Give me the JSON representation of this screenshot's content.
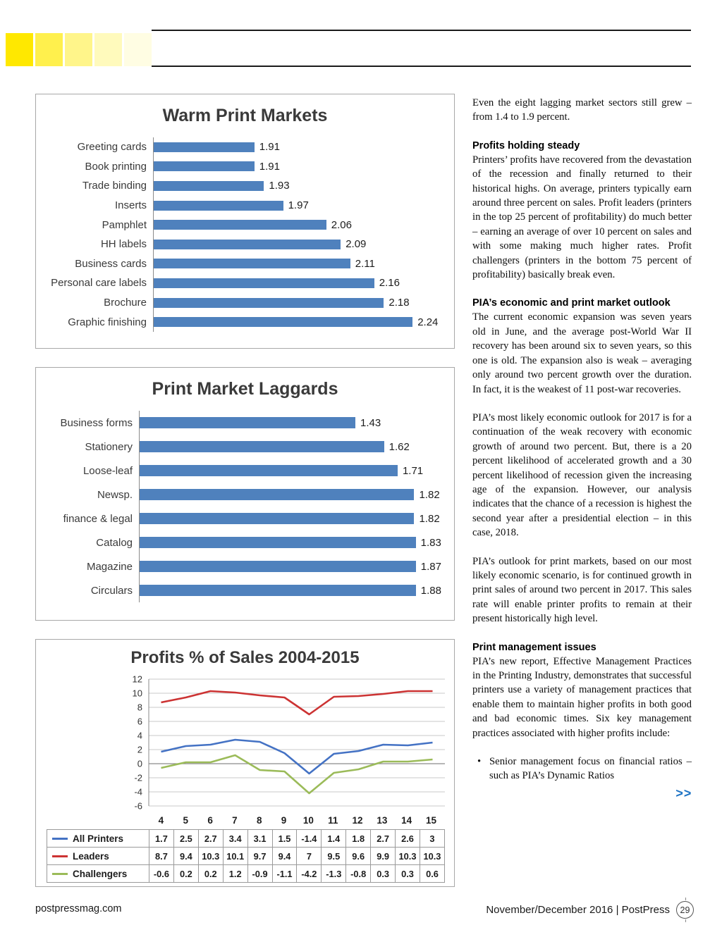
{
  "header": {
    "accent_blocks": [
      "#ffe800",
      "#fff04d",
      "#fff58a",
      "#fffabc",
      "#fffde3"
    ],
    "rule_color": "#1a1a1a"
  },
  "article": {
    "intro": "Even the eight lagging market sectors still grew – from 1.4 to 1.9 percent.",
    "bullet_marker": "•",
    "sections": [
      {
        "heading": "Profits holding steady",
        "paragraphs": [
          "Printers’ profits have recovered from the devastation of the recession and finally returned to their historical highs. On average, printers typically earn around three percent on sales. Profit leaders (printers in the top 25 percent of profitability) do much better – earning an average of over 10 percent on sales and with some making much higher rates. Profit challengers (printers in the bottom 75 percent of profitability) basically break even."
        ]
      },
      {
        "heading": "PIA’s economic and print market outlook",
        "paragraphs": [
          "The current economic expansion was seven years old in June, and the average post-World War II recovery has been around six to seven years, so this one is old. The expansion also is weak – averaging only around two percent growth over the duration. In fact, it is the weakest of 11 post-war recoveries.",
          "PIA’s most likely economic outlook for 2017 is for a continuation of the weak recovery with economic growth of around two percent. But, there is a 20 percent likelihood of accelerated growth and a 30 percent likelihood of recession given the increasing age of the expansion. However, our analysis indicates that the chance of a recession is highest the second year after a presidential election – in this case, 2018.",
          "PIA’s outlook for print markets, based on our most likely economic scenario, is for continued growth in print sales of around two percent in 2017. This sales rate will enable printer profits to remain at their present historically high level."
        ]
      },
      {
        "heading": "Print management issues",
        "paragraphs": [
          "PIA’s new report, Effective Management Practices in the Printing Industry, demonstrates that successful printers use a variety of management practices that enable them to maintain higher profits in both good and bad economic times. Six key management practices associated with higher profits include:"
        ],
        "bullets": [
          "Senior management focus on financial ratios – such as PIA’s Dynamic Ratios"
        ]
      }
    ],
    "more_indicator": ">>",
    "more_color": "#1c72c4"
  },
  "footer": {
    "site": "postpressmag.com",
    "issue": "November/December 2016 | PostPress",
    "page_number": "29"
  },
  "chart_data": [
    {
      "id": "warm",
      "type": "bar",
      "orientation": "horizontal",
      "title": "Warm Print Markets",
      "categories": [
        "Greeting cards",
        "Book printing",
        "Trade binding",
        "Inserts",
        "Pamphlet",
        "HH labels",
        "Business cards",
        "Personal care labels",
        "Brochure",
        "Graphic finishing"
      ],
      "values": [
        1.91,
        1.91,
        1.93,
        1.97,
        2.06,
        2.09,
        2.11,
        2.16,
        2.18,
        2.24
      ],
      "xlim": [
        1.7,
        2.3
      ],
      "bar_color": "#4f81bd",
      "value_decimals": 2,
      "grid": false,
      "legend_position": "none"
    },
    {
      "id": "laggards",
      "type": "bar",
      "orientation": "horizontal",
      "title": "Print Market Laggards",
      "categories": [
        "Business forms",
        "Stationery",
        "Loose-leaf",
        "Newsp.",
        "finance & legal",
        "Catalog",
        "Magazine",
        "Circulars"
      ],
      "values": [
        1.43,
        1.62,
        1.71,
        1.82,
        1.82,
        1.83,
        1.87,
        1.88
      ],
      "xlim": [
        0,
        2.0
      ],
      "bar_color": "#4f81bd",
      "value_decimals": 2,
      "grid": false,
      "legend_position": "none"
    },
    {
      "id": "profits",
      "type": "line",
      "title": "Profits % of Sales 2004-2015",
      "x": [
        4,
        5,
        6,
        7,
        8,
        9,
        10,
        11,
        12,
        13,
        14,
        15
      ],
      "ylim": [
        -6,
        12
      ],
      "yticks": [
        12,
        10,
        8,
        6,
        4,
        2,
        0,
        -2,
        -4,
        -6
      ],
      "grid": true,
      "legend_position": "table-left",
      "series": [
        {
          "name": "All Printers",
          "color": "#4472c4",
          "values": [
            1.7,
            2.5,
            2.7,
            3.4,
            3.1,
            1.5,
            -1.4,
            1.4,
            1.8,
            2.7,
            2.6,
            3
          ]
        },
        {
          "name": "Leaders",
          "color": "#cc3333",
          "values": [
            8.7,
            9.4,
            10.3,
            10.1,
            9.7,
            9.4,
            7,
            9.5,
            9.6,
            9.9,
            10.3,
            10.3
          ]
        },
        {
          "name": "Challengers",
          "color": "#9bbb59",
          "values": [
            -0.6,
            0.2,
            0.2,
            1.2,
            -0.9,
            -1.1,
            -4.2,
            -1.3,
            -0.8,
            0.3,
            0.3,
            0.6
          ]
        }
      ]
    }
  ]
}
